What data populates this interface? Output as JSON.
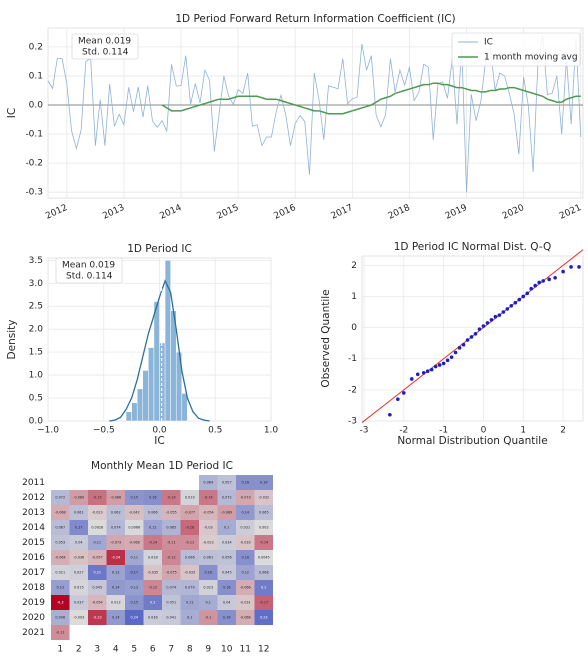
{
  "chart_data": [
    {
      "type": "line",
      "title": "1D Period Forward Return Information Coefficient (IC)",
      "y_label": "IC",
      "annotations": [
        "Mean 0.019",
        "Std. 0.114"
      ],
      "legend": "upper right",
      "grid": true,
      "x": [
        2011.667,
        2011.75,
        2011.833,
        2011.917,
        2012,
        2012.083,
        2012.167,
        2012.25,
        2012.333,
        2012.417,
        2012.5,
        2012.583,
        2012.667,
        2012.75,
        2012.833,
        2012.917,
        2013,
        2013.083,
        2013.167,
        2013.25,
        2013.333,
        2013.417,
        2013.5,
        2013.583,
        2013.667,
        2013.75,
        2013.833,
        2013.917,
        2014,
        2014.083,
        2014.167,
        2014.25,
        2014.333,
        2014.417,
        2014.5,
        2014.583,
        2014.667,
        2014.75,
        2014.833,
        2014.917,
        2015,
        2015.083,
        2015.167,
        2015.25,
        2015.333,
        2015.417,
        2015.5,
        2015.583,
        2015.667,
        2015.75,
        2015.833,
        2015.917,
        2016,
        2016.083,
        2016.167,
        2016.25,
        2016.333,
        2016.417,
        2016.5,
        2016.583,
        2016.667,
        2016.75,
        2016.833,
        2016.917,
        2017,
        2017.083,
        2017.167,
        2017.25,
        2017.333,
        2017.417,
        2017.5,
        2017.583,
        2017.667,
        2017.75,
        2017.833,
        2017.917,
        2018,
        2018.083,
        2018.167,
        2018.25,
        2018.333,
        2018.417,
        2018.5,
        2018.583,
        2018.667,
        2018.75,
        2018.833,
        2018.917,
        2019,
        2019.083,
        2019.167,
        2019.25,
        2019.333,
        2019.417,
        2019.5,
        2019.583,
        2019.667,
        2019.75,
        2019.833,
        2019.917,
        2020,
        2020.083,
        2020.167,
        2020.25,
        2020.333,
        2020.417,
        2020.5,
        2020.583,
        2020.667,
        2020.75,
        2020.833,
        2020.917,
        2021
      ],
      "series": [
        {
          "name": "IC",
          "color": "#8fb2d9",
          "values": [
            0.084,
            0.057,
            0.16,
            0.16,
            0.072,
            -0.089,
            -0.15,
            -0.086,
            0.15,
            0.16,
            -0.14,
            0.019,
            -0.14,
            0.072,
            -0.073,
            -0.032,
            -0.068,
            0.061,
            -0.023,
            0.062,
            -0.042,
            0.066,
            -0.055,
            -0.077,
            -0.054,
            -0.089,
            0.14,
            0.065,
            0.067,
            0.17,
            0.0028,
            0.074,
            0.0066,
            0.12,
            0.085,
            -0.16,
            -0.03,
            0.1,
            0.031,
            0.002,
            0.053,
            0.04,
            0.11,
            -0.073,
            -0.068,
            -0.14,
            -0.11,
            -0.11,
            -0.023,
            0.034,
            -0.033,
            -0.14,
            -0.064,
            -0.036,
            -0.057,
            -0.24,
            0.11,
            0.018,
            -0.12,
            0.066,
            0.061,
            0.056,
            0.16,
            0.0045,
            0.021,
            0.027,
            0.21,
            0.12,
            0.17,
            -0.035,
            -0.075,
            -0.033,
            0.16,
            0.045,
            0.12,
            0.068,
            0.13,
            0.015,
            0.045,
            0.14,
            0.13,
            -0.12,
            0.074,
            0.079,
            0.023,
            0.16,
            -0.066,
            0.2,
            -0.3,
            0.037,
            -0.054,
            0.012,
            0.15,
            0.2,
            0.051,
            0.11,
            0.1,
            0.04,
            -0.031,
            -0.17,
            0.096,
            -0.003,
            -0.23,
            0.14,
            0.24,
            0.036,
            0.041,
            0.1,
            -0.1,
            0.16,
            -0.066,
            0.23,
            -0.11
          ]
        },
        {
          "name": "1 month moving avg",
          "color": "#4f9a52",
          "values": [
            null,
            null,
            null,
            null,
            null,
            null,
            null,
            null,
            null,
            null,
            null,
            null,
            null,
            null,
            null,
            null,
            null,
            null,
            null,
            null,
            null,
            null,
            null,
            null,
            0.0,
            -0.01,
            -0.02,
            -0.02,
            -0.02,
            -0.015,
            -0.01,
            -0.005,
            0.0,
            0.005,
            0.01,
            0.015,
            0.02,
            0.02,
            0.02,
            0.025,
            0.03,
            0.03,
            0.03,
            0.03,
            0.03,
            0.025,
            0.02,
            0.02,
            0.02,
            0.015,
            0.01,
            0.005,
            0.0,
            -0.005,
            -0.01,
            -0.015,
            -0.02,
            -0.02,
            -0.025,
            -0.03,
            -0.03,
            -0.03,
            -0.03,
            -0.025,
            -0.02,
            -0.015,
            -0.01,
            -0.005,
            0.0,
            0.01,
            0.02,
            0.025,
            0.03,
            0.04,
            0.045,
            0.05,
            0.055,
            0.06,
            0.065,
            0.07,
            0.07,
            0.075,
            0.075,
            0.07,
            0.07,
            0.065,
            0.06,
            0.06,
            0.055,
            0.05,
            0.05,
            0.045,
            0.045,
            0.05,
            0.05,
            0.055,
            0.055,
            0.06,
            0.06,
            0.055,
            0.05,
            0.045,
            0.04,
            0.035,
            0.03,
            0.02,
            0.015,
            0.01,
            0.01,
            0.02,
            0.025,
            0.03,
            0.03
          ]
        }
      ],
      "xlim": [
        2011.67,
        2021.04
      ],
      "xticks": [
        2012,
        2013,
        2014,
        2015,
        2016,
        2017,
        2018,
        2019,
        2020,
        2021
      ],
      "ylim": [
        -0.32,
        0.265
      ],
      "yticks": [
        -0.3,
        -0.2,
        -0.1,
        {
          "value": 0,
          "label": "0.0"
        },
        0.1,
        0.2
      ]
    },
    {
      "type": "histogram",
      "title": "1D Period IC",
      "x_label": "IC",
      "y_label": "Density",
      "annotations": [
        "Mean 0.019",
        "Std. 0.114"
      ],
      "color": "#8ab4d8",
      "grid": true,
      "bins": [
        -0.3,
        -0.25,
        -0.2,
        -0.15,
        -0.1,
        -0.05,
        0,
        0.05,
        0.1,
        0.15,
        0.2,
        0.25
      ],
      "values": [
        0.2,
        0.4,
        0.7,
        1.1,
        1.6,
        2.6,
        1.7,
        3.5,
        2.4,
        1.5,
        0.6
      ],
      "kde": {
        "color": "#2a6fa0",
        "x": [
          -0.45,
          -0.4,
          -0.35,
          -0.3,
          -0.25,
          -0.2,
          -0.15,
          -0.1,
          -0.05,
          0,
          0.05,
          0.1,
          0.15,
          0.2,
          0.25,
          0.3,
          0.35,
          0.4,
          0.45
        ],
        "values": [
          0,
          0.02,
          0.08,
          0.25,
          0.5,
          0.9,
          1.4,
          1.9,
          2.3,
          2.7,
          3.05,
          2.8,
          2.0,
          1.1,
          0.5,
          0.2,
          0.06,
          0.02,
          0
        ]
      },
      "mean_line": 0.019,
      "xlim": [
        -1.0,
        1.0
      ],
      "xticks": [
        {
          "value": -1,
          "label": "−1.0"
        },
        {
          "value": -0.5,
          "label": "−0.5"
        },
        {
          "value": 0,
          "label": "0.0"
        },
        0.5,
        {
          "value": 1,
          "label": "1.0"
        }
      ],
      "ylim": [
        0,
        3.55
      ],
      "yticks": [
        {
          "value": 0,
          "label": "0.0"
        },
        0.5,
        {
          "value": 1,
          "label": "1.0"
        },
        1.5,
        {
          "value": 2,
          "label": "2.0"
        },
        2.5,
        {
          "value": 3,
          "label": "3.0"
        },
        3.5
      ]
    },
    {
      "type": "scatter",
      "title": "1D Period IC Normal Dist. Q-Q",
      "x_label": "Normal Distribution Quantile",
      "y_label": "Observed Quantile",
      "color": "#1f1fbf",
      "grid": true,
      "x": [
        -2.35,
        -2.15,
        -2.0,
        -1.8,
        -1.65,
        -1.5,
        -1.4,
        -1.3,
        -1.2,
        -1.1,
        -1.0,
        -0.9,
        -0.8,
        -0.7,
        -0.6,
        -0.5,
        -0.4,
        -0.3,
        -0.2,
        -0.1,
        0,
        0.1,
        0.2,
        0.3,
        0.4,
        0.5,
        0.6,
        0.7,
        0.8,
        0.9,
        1.0,
        1.1,
        1.2,
        1.3,
        1.4,
        1.5,
        1.65,
        1.8,
        2.0,
        2.2,
        2.4
      ],
      "values": [
        -2.8,
        -2.3,
        -2.1,
        -1.65,
        -1.5,
        -1.45,
        -1.4,
        -1.35,
        -1.25,
        -1.2,
        -1.15,
        -1.05,
        -0.95,
        -0.8,
        -0.65,
        -0.55,
        -0.4,
        -0.3,
        -0.2,
        -0.05,
        0.05,
        0.15,
        0.25,
        0.35,
        0.4,
        0.5,
        0.6,
        0.7,
        0.8,
        0.9,
        1.0,
        1.1,
        1.25,
        1.35,
        1.45,
        1.5,
        1.55,
        1.6,
        1.8,
        1.95,
        1.95
      ],
      "reference_line": {
        "color": "#e8302a",
        "x": [
          -3.05,
          2.5
        ],
        "values": [
          -3.05,
          2.5
        ]
      },
      "xlim": [
        -3.05,
        2.5
      ],
      "xticks": [
        -3,
        -2,
        -1,
        0,
        1,
        2
      ],
      "ylim": [
        -3.0,
        2.3
      ],
      "yticks": [
        -3,
        -2,
        -1,
        0,
        1,
        2
      ]
    },
    {
      "type": "heatmap",
      "title": "Monthly Mean 1D Period IC",
      "colors": [
        "#b40426",
        "#dddcdc",
        "#3b4cc0"
      ],
      "rows": [
        "2011",
        "2012",
        "2013",
        "2014",
        "2015",
        "2016",
        "2017",
        "2018",
        "2019",
        "2020",
        "2021"
      ],
      "columns": [
        1,
        2,
        3,
        4,
        5,
        6,
        7,
        8,
        9,
        10,
        11,
        12
      ],
      "values": [
        [
          null,
          null,
          null,
          null,
          null,
          null,
          null,
          null,
          0.084,
          0.057,
          0.16,
          0.16
        ],
        [
          0.072,
          -0.089,
          -0.15,
          -0.086,
          0.15,
          0.16,
          -0.14,
          0.019,
          -0.14,
          0.072,
          -0.073,
          -0.032
        ],
        [
          -0.068,
          0.061,
          -0.023,
          0.062,
          -0.042,
          0.066,
          -0.055,
          -0.077,
          -0.054,
          -0.089,
          0.14,
          0.065
        ],
        [
          0.067,
          0.17,
          0.0028,
          0.074,
          0.0066,
          0.12,
          0.085,
          -0.16,
          -0.03,
          0.1,
          0.031,
          0.002
        ],
        [
          0.053,
          0.04,
          0.11,
          -0.073,
          -0.068,
          -0.14,
          -0.11,
          -0.11,
          -0.023,
          0.034,
          -0.033,
          -0.14
        ],
        [
          -0.064,
          -0.036,
          -0.057,
          -0.24,
          0.11,
          0.018,
          -0.12,
          0.066,
          0.061,
          0.056,
          0.16,
          0.0045
        ],
        [
          0.021,
          0.027,
          0.21,
          0.12,
          0.17,
          -0.035,
          -0.075,
          -0.033,
          0.16,
          0.045,
          0.12,
          0.068
        ],
        [
          0.13,
          0.015,
          0.045,
          0.14,
          0.13,
          -0.12,
          0.074,
          0.079,
          0.023,
          0.16,
          -0.066,
          0.2
        ],
        [
          -0.3,
          0.037,
          -0.054,
          0.012,
          0.15,
          0.2,
          0.051,
          0.11,
          0.1,
          0.04,
          -0.031,
          -0.17
        ],
        [
          0.096,
          -0.003,
          -0.23,
          0.14,
          0.24,
          0.036,
          0.041,
          0.1,
          -0.1,
          0.16,
          -0.066,
          0.23
        ],
        [
          -0.11,
          null,
          null,
          null,
          null,
          null,
          null,
          null,
          null,
          null,
          null,
          null
        ]
      ]
    }
  ]
}
